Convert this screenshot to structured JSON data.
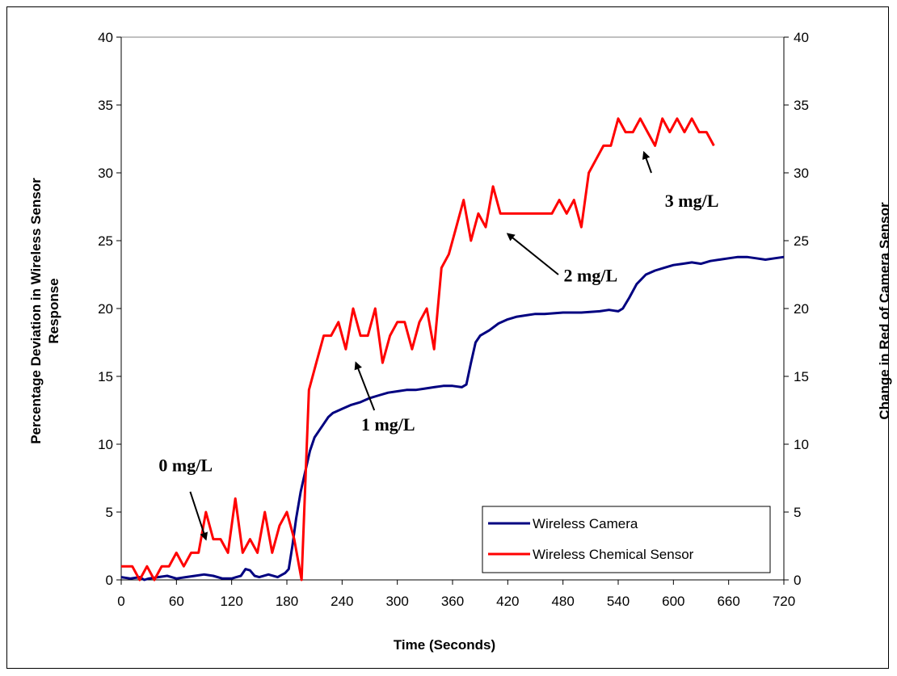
{
  "chart_data": {
    "type": "line",
    "title": "",
    "xlabel": "Time (Seconds)",
    "ylabel": "Percentage Deviation in Wireless Sensor Response",
    "ylabel_lines": [
      "Percentage Deviation in Wireless Sensor",
      "Response"
    ],
    "y2label": "Change in Red of Camera Sensor",
    "xlim": [
      0,
      720
    ],
    "ylim": [
      0,
      40
    ],
    "y2lim": [
      0,
      40
    ],
    "x_ticks": [
      "0",
      "60",
      "120",
      "180",
      "240",
      "300",
      "360",
      "420",
      "480",
      "540",
      "600",
      "660",
      "720"
    ],
    "y_ticks": [
      "0",
      "5",
      "10",
      "15",
      "20",
      "25",
      "30",
      "35",
      "40"
    ],
    "y2_ticks": [
      "0",
      "5",
      "10",
      "15",
      "20",
      "25",
      "30",
      "35",
      "40"
    ],
    "grid": false,
    "legend_position": "bottom-right",
    "series": [
      {
        "name": "Wireless Camera",
        "axis": "right",
        "color": "#000080",
        "points": [
          [
            0,
            0.2
          ],
          [
            10,
            0.1
          ],
          [
            20,
            0.2
          ],
          [
            25,
            0.0
          ],
          [
            30,
            0.1
          ],
          [
            40,
            0.2
          ],
          [
            50,
            0.3
          ],
          [
            60,
            0.1
          ],
          [
            70,
            0.2
          ],
          [
            80,
            0.3
          ],
          [
            90,
            0.4
          ],
          [
            100,
            0.3
          ],
          [
            110,
            0.1
          ],
          [
            120,
            0.1
          ],
          [
            125,
            0.2
          ],
          [
            130,
            0.3
          ],
          [
            135,
            0.8
          ],
          [
            140,
            0.7
          ],
          [
            145,
            0.3
          ],
          [
            150,
            0.2
          ],
          [
            160,
            0.4
          ],
          [
            170,
            0.2
          ],
          [
            178,
            0.5
          ],
          [
            182,
            0.8
          ],
          [
            186,
            2.5
          ],
          [
            190,
            4.5
          ],
          [
            195,
            6.5
          ],
          [
            200,
            8.0
          ],
          [
            205,
            9.5
          ],
          [
            210,
            10.5
          ],
          [
            215,
            11.0
          ],
          [
            220,
            11.5
          ],
          [
            225,
            12.0
          ],
          [
            230,
            12.3
          ],
          [
            240,
            12.6
          ],
          [
            250,
            12.9
          ],
          [
            260,
            13.1
          ],
          [
            270,
            13.4
          ],
          [
            280,
            13.6
          ],
          [
            290,
            13.8
          ],
          [
            300,
            13.9
          ],
          [
            310,
            14.0
          ],
          [
            320,
            14.0
          ],
          [
            330,
            14.1
          ],
          [
            340,
            14.2
          ],
          [
            350,
            14.3
          ],
          [
            360,
            14.3
          ],
          [
            370,
            14.2
          ],
          [
            375,
            14.4
          ],
          [
            380,
            16.0
          ],
          [
            385,
            17.5
          ],
          [
            390,
            18.0
          ],
          [
            400,
            18.4
          ],
          [
            410,
            18.9
          ],
          [
            420,
            19.2
          ],
          [
            430,
            19.4
          ],
          [
            440,
            19.5
          ],
          [
            450,
            19.6
          ],
          [
            460,
            19.6
          ],
          [
            480,
            19.7
          ],
          [
            500,
            19.7
          ],
          [
            520,
            19.8
          ],
          [
            530,
            19.9
          ],
          [
            540,
            19.8
          ],
          [
            545,
            20.0
          ],
          [
            552,
            20.8
          ],
          [
            560,
            21.8
          ],
          [
            570,
            22.5
          ],
          [
            580,
            22.8
          ],
          [
            590,
            23.0
          ],
          [
            600,
            23.2
          ],
          [
            610,
            23.3
          ],
          [
            620,
            23.4
          ],
          [
            630,
            23.3
          ],
          [
            640,
            23.5
          ],
          [
            650,
            23.6
          ],
          [
            660,
            23.7
          ],
          [
            670,
            23.8
          ],
          [
            680,
            23.8
          ],
          [
            690,
            23.7
          ],
          [
            700,
            23.6
          ],
          [
            710,
            23.7
          ],
          [
            720,
            23.8
          ]
        ]
      },
      {
        "name": "Wireless Chemical Sensor",
        "axis": "left",
        "color": "#ff0000",
        "points": [
          [
            0,
            1
          ],
          [
            12,
            1
          ],
          [
            20,
            0
          ],
          [
            28,
            1
          ],
          [
            36,
            0
          ],
          [
            44,
            1
          ],
          [
            52,
            1
          ],
          [
            60,
            2
          ],
          [
            68,
            1
          ],
          [
            76,
            2
          ],
          [
            84,
            2
          ],
          [
            92,
            5
          ],
          [
            100,
            3
          ],
          [
            108,
            3
          ],
          [
            116,
            2
          ],
          [
            124,
            6
          ],
          [
            132,
            2
          ],
          [
            140,
            3
          ],
          [
            148,
            2
          ],
          [
            156,
            5
          ],
          [
            164,
            2
          ],
          [
            172,
            4
          ],
          [
            180,
            5
          ],
          [
            188,
            3
          ],
          [
            196,
            0
          ],
          [
            204,
            14
          ],
          [
            212,
            16
          ],
          [
            220,
            18
          ],
          [
            228,
            18
          ],
          [
            236,
            19
          ],
          [
            244,
            17
          ],
          [
            252,
            20
          ],
          [
            260,
            18
          ],
          [
            268,
            18
          ],
          [
            276,
            20
          ],
          [
            284,
            16
          ],
          [
            292,
            18
          ],
          [
            300,
            19
          ],
          [
            308,
            19
          ],
          [
            316,
            17
          ],
          [
            324,
            19
          ],
          [
            332,
            20
          ],
          [
            340,
            17
          ],
          [
            348,
            23
          ],
          [
            356,
            24
          ],
          [
            364,
            26
          ],
          [
            372,
            28
          ],
          [
            380,
            25
          ],
          [
            388,
            27
          ],
          [
            396,
            26
          ],
          [
            404,
            29
          ],
          [
            412,
            27
          ],
          [
            420,
            27
          ],
          [
            428,
            27
          ],
          [
            436,
            27
          ],
          [
            444,
            27
          ],
          [
            452,
            27
          ],
          [
            460,
            27
          ],
          [
            468,
            27
          ],
          [
            476,
            28
          ],
          [
            484,
            27
          ],
          [
            492,
            28
          ],
          [
            500,
            26
          ],
          [
            508,
            30
          ],
          [
            516,
            31
          ],
          [
            524,
            32
          ],
          [
            532,
            32
          ],
          [
            540,
            34
          ],
          [
            548,
            33
          ],
          [
            556,
            33
          ],
          [
            564,
            34
          ],
          [
            572,
            33
          ],
          [
            580,
            32
          ],
          [
            588,
            34
          ],
          [
            596,
            33
          ],
          [
            604,
            34
          ],
          [
            612,
            33
          ],
          [
            620,
            34
          ],
          [
            628,
            33
          ],
          [
            636,
            33
          ],
          [
            644,
            32
          ]
        ]
      }
    ],
    "annotations": [
      {
        "text": "0 mg/L",
        "x": 70,
        "y": 8
      },
      {
        "text": "1 mg/L",
        "x": 290,
        "y": 11
      },
      {
        "text": "2 mg/L",
        "x": 510,
        "y": 22
      },
      {
        "text": "3 mg/L",
        "x": 620,
        "y": 28
      }
    ]
  }
}
